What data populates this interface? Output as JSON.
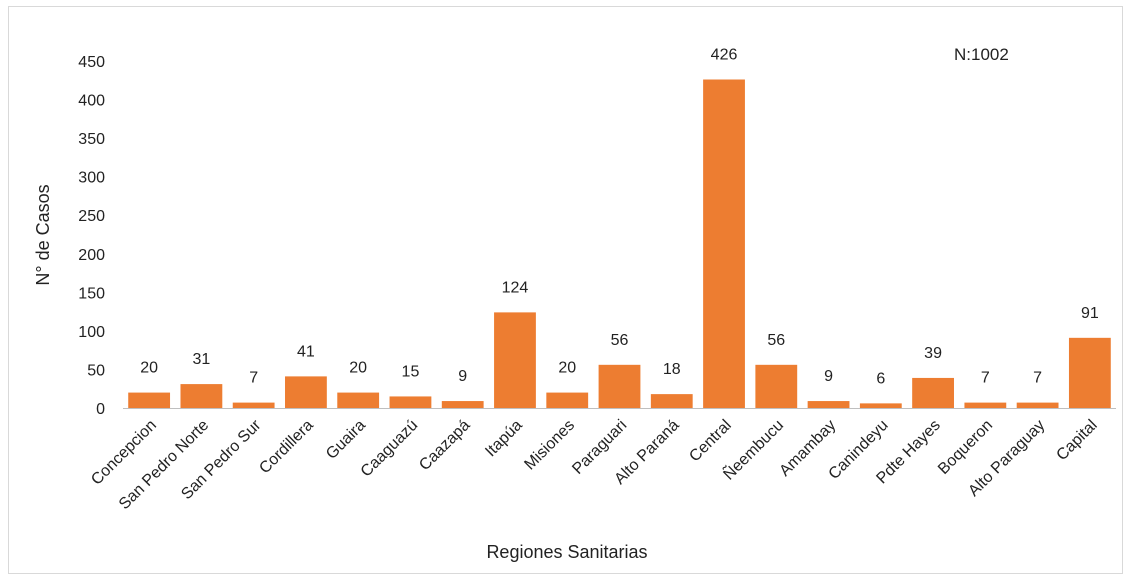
{
  "chart_data": {
    "type": "bar",
    "categories": [
      "Concepcion",
      "San Pedro Norte",
      "San Pedro Sur",
      "Cordillera",
      "Guaira",
      "Caaguazú",
      "Caazapá",
      "Itapúa",
      "Misiones",
      "Paraguari",
      "Alto Paraná",
      "Central",
      "Ñeembucu",
      "Amambay",
      "Canindeyu",
      "Pdte Hayes",
      "Boqueron",
      "Alto Paraguay",
      "Capital"
    ],
    "values": [
      20,
      31,
      7,
      41,
      20,
      15,
      9,
      124,
      20,
      56,
      18,
      426,
      56,
      9,
      6,
      39,
      7,
      7,
      91
    ],
    "title": "",
    "xlabel": "Regiones Sanitarias",
    "ylabel": "N° de Casos",
    "ylim": [
      0,
      450
    ],
    "yticks": [
      0,
      50,
      100,
      150,
      200,
      250,
      300,
      350,
      400,
      450
    ],
    "annotation": "N:1002",
    "grid": false,
    "colors": {
      "bar": "#ED7D31"
    }
  }
}
